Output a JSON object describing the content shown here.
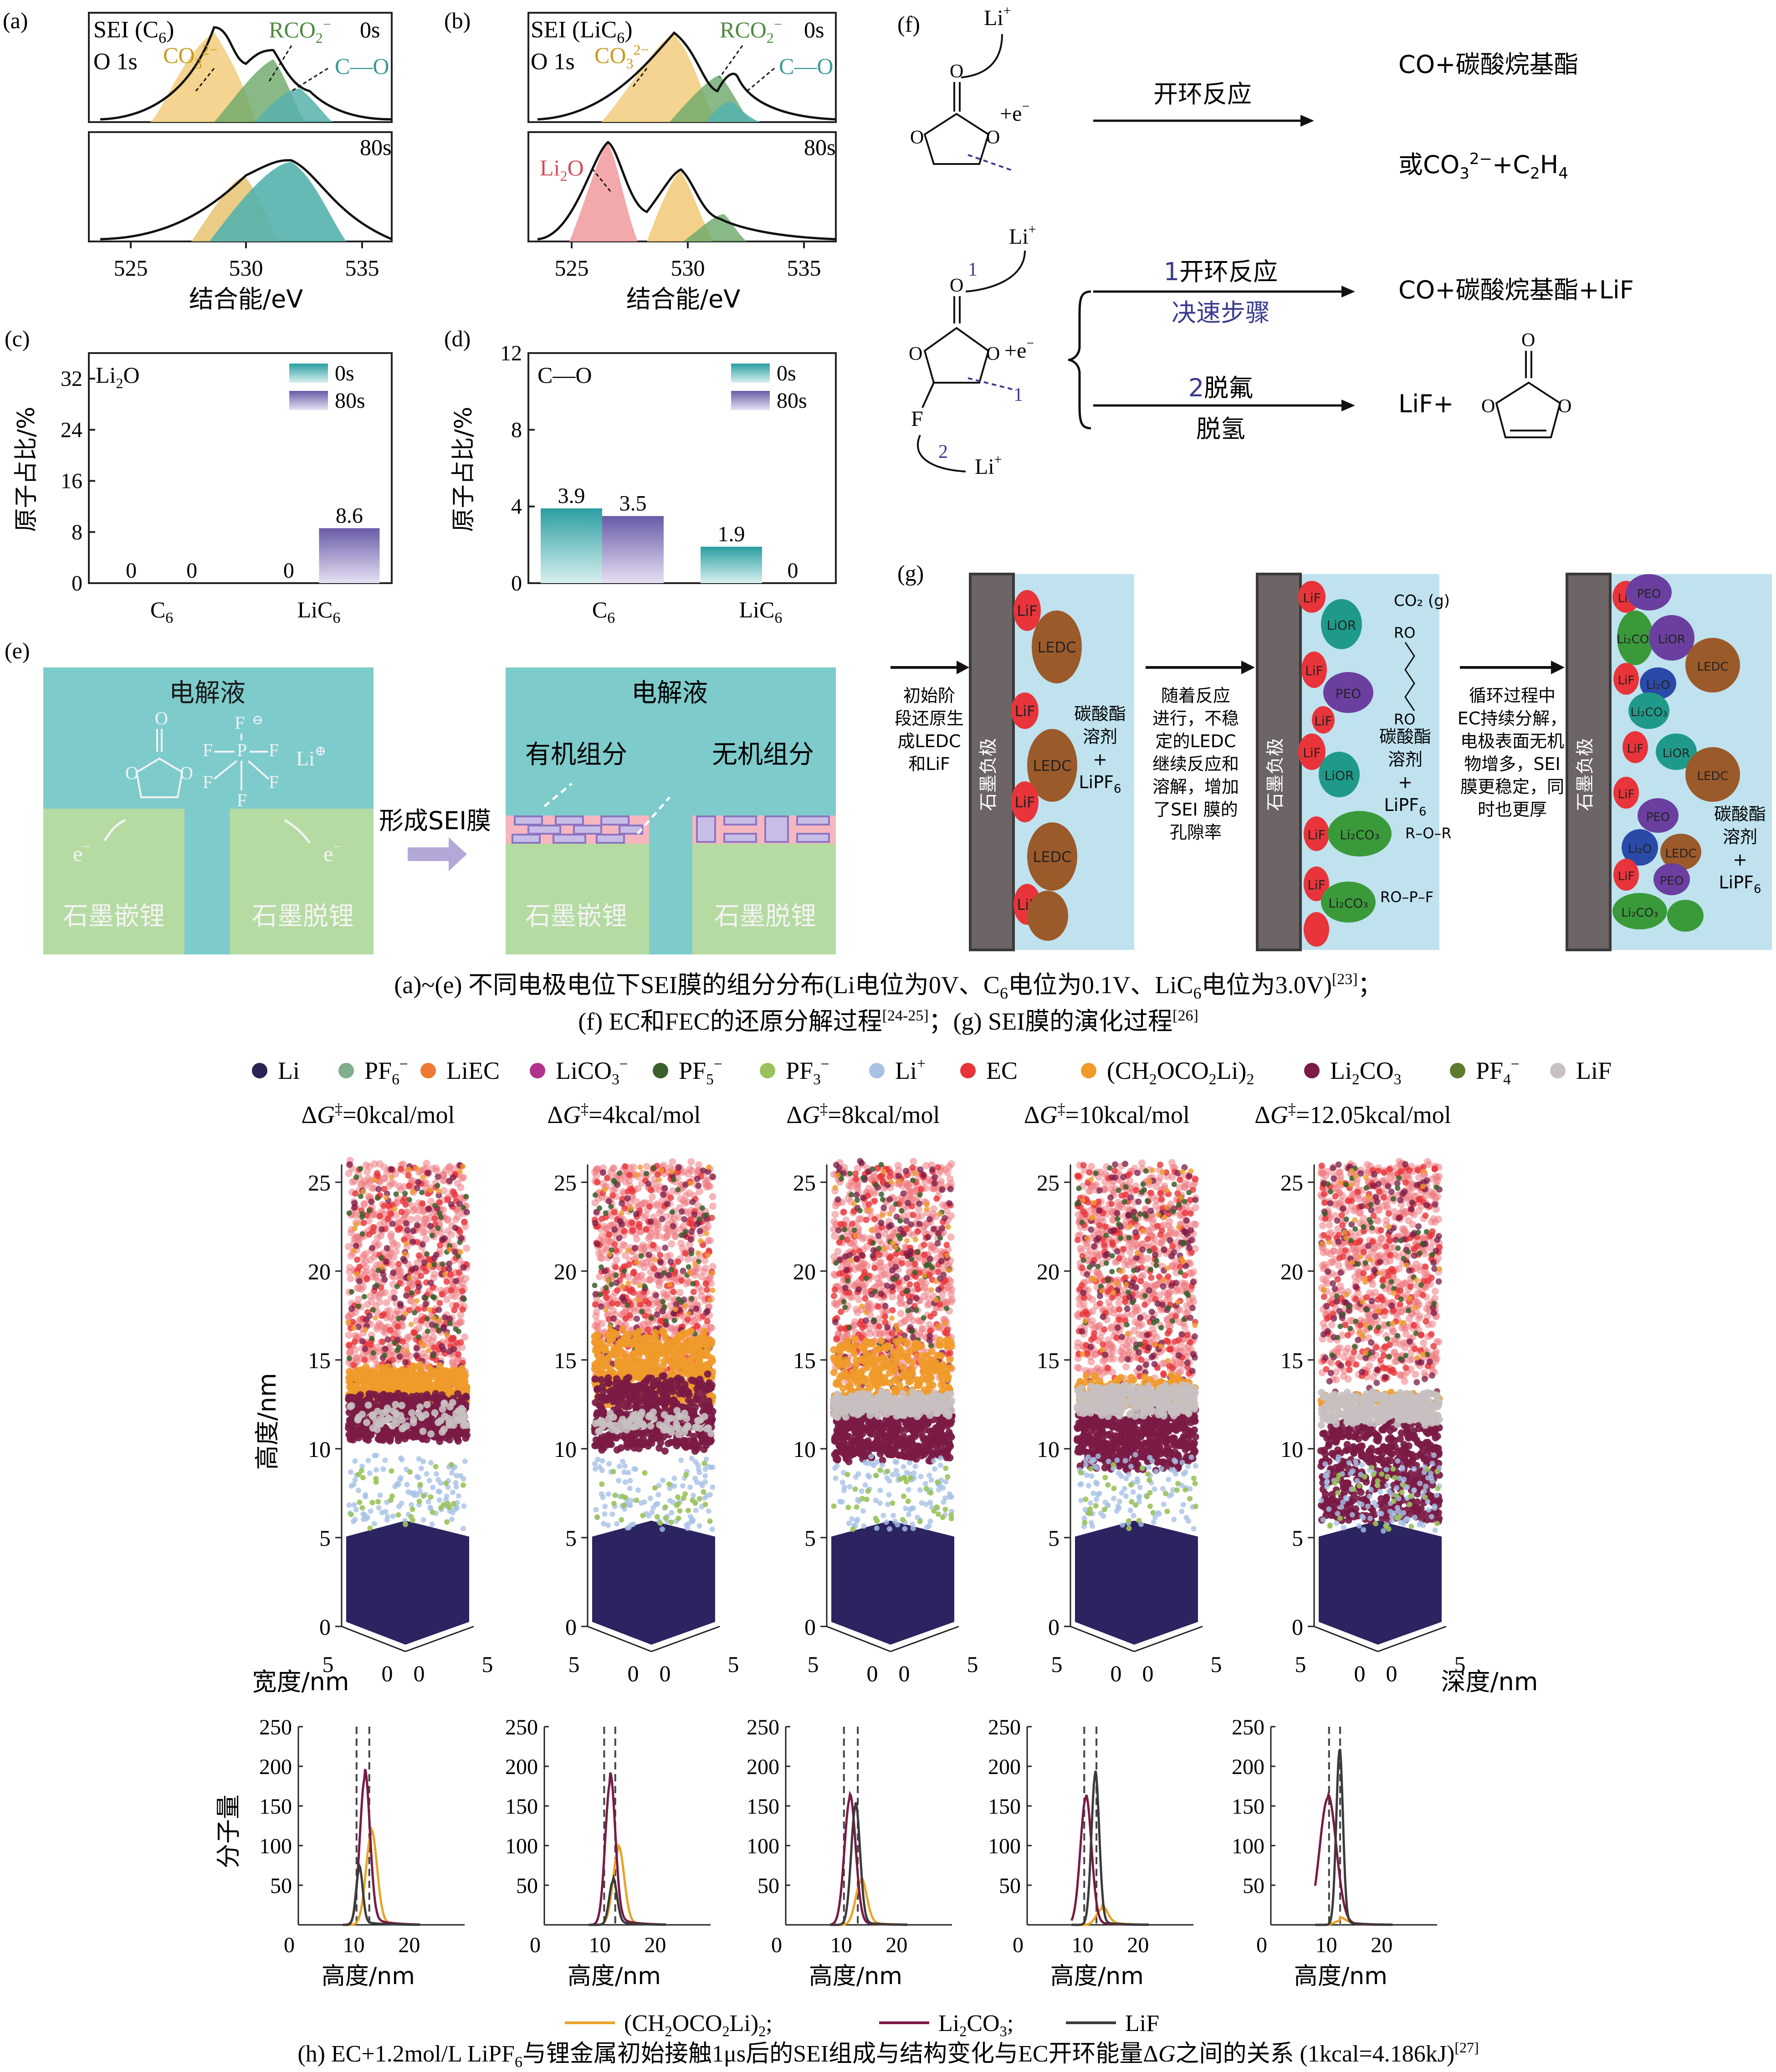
{
  "panels": {
    "a": {
      "tag": "(a)",
      "title_line1": "SEI (C",
      "title_sub": "6",
      "title_close": ")",
      "title_line2": "O 1s",
      "label_top": "0s",
      "label_bottom": "80s",
      "peaks": {
        "co3": "CO",
        "co3_sub": "3",
        "co3_sup": "2−",
        "rco2": "RCO",
        "rco2_sub": "2",
        "rco2_sup": "−",
        "co": "C—O"
      },
      "xticks": [
        "525",
        "530",
        "535"
      ],
      "xlabel": "结合能/eV"
    },
    "b": {
      "tag": "(b)",
      "title_line1": "SEI (LiC",
      "title_sub": "6",
      "title_close": ")",
      "title_line2": "O 1s",
      "label_top": "0s",
      "label_bottom": "80s",
      "peaks": {
        "co3": "CO",
        "co3_sub": "3",
        "co3_sup": "2−",
        "rco2": "RCO",
        "rco2_sub": "2",
        "rco2_sup": "−",
        "co": "C—O",
        "li2o": "Li",
        "li2o_sub": "2",
        "li2o_end": "O"
      },
      "xticks": [
        "525",
        "530",
        "535"
      ],
      "xlabel": "结合能/eV"
    },
    "c": {
      "tag": "(c)",
      "species": "Li",
      "species_sub": "2",
      "species_end": "O",
      "ylabel": "原子占比/%",
      "yticks": [
        "0",
        "8",
        "16",
        "24",
        "32"
      ],
      "legend": [
        "0s",
        "80s"
      ],
      "categories": [
        {
          "name": "C",
          "sub": "6"
        },
        {
          "name": "LiC",
          "sub": "6"
        }
      ]
    },
    "d": {
      "tag": "(d)",
      "species": "C—O",
      "ylabel": "原子占比/%",
      "yticks": [
        "0",
        "4",
        "8",
        "12"
      ],
      "legend": [
        "0s",
        "80s"
      ],
      "categories": [
        {
          "name": "C",
          "sub": "6"
        },
        {
          "name": "LiC",
          "sub": "6"
        }
      ]
    },
    "e": {
      "tag": "(e)",
      "electrolyte": "电解液",
      "electrolyte2": "电解液",
      "electron": "e",
      "electron_sup": "−",
      "graphite_in": "石墨嵌锂",
      "graphite_out": "石墨脱锂",
      "arrow_label": "形成SEI膜",
      "organic": "有机组分",
      "inorganic": "无机组分",
      "li_ion": "Li",
      "li_sup": "⊕",
      "f_label": "F",
      "p_label": "P",
      "minus": "⊖"
    },
    "f": {
      "tag": "(f)",
      "li1": "Li",
      "li_sup": "+",
      "e_minus": "+e",
      "e_sup": "−",
      "route1": "开环反应",
      "product1": "CO+碳酸烷基酯",
      "product2_a": "或CO",
      "product2_sub1": "3",
      "product2_sup1": "2−",
      "product2_b": "+C",
      "product2_sub2": "2",
      "product2_c": "H",
      "product2_sub3": "4",
      "fec_route1_num": "1",
      "fec_route1": "开环反应",
      "fec_route1_note": "决速步骤",
      "fec_product1": "CO+碳酸烷基酯+LiF",
      "fec_route2_num": "2",
      "fec_route2_a": "脱氟",
      "fec_route2_b": "脱氢",
      "fec_product2": "LiF+",
      "f_atom": "F",
      "o_atom": "O",
      "num1": "1",
      "num2": "2"
    },
    "g": {
      "tag": "(g)",
      "step1": [
        "初始阶",
        "段还原生",
        "成LEDC",
        "和LiF"
      ],
      "step2": [
        "随着反应",
        "进行，不稳",
        "定的LEDC",
        "继续反应和",
        "溶解，增加",
        "了SEI 膜的",
        "孔隙率"
      ],
      "step3": [
        "循环过程中",
        "EC持续分解，",
        "电极表面无机",
        "物增多，SEI",
        "膜更稳定，同",
        "时也更厚"
      ],
      "electrode": "石墨负极",
      "solvent": [
        "碳酸酯",
        "溶剂",
        "+",
        "LiPF"
      ],
      "solvent_sub": "6",
      "lif": "LiF",
      "ledc": "LEDC",
      "lior": "LiOR",
      "peo": "PEO",
      "li2co3": "Li₂CO₃",
      "li2o": "Li₂O",
      "co2": "CO₂ (g)",
      "ro": "RO",
      "r_o_r": "R–O–R",
      "ropf": "RO–P–F"
    }
  },
  "caption_main": {
    "line1": "(a)~(e) 不同电极电位下SEI膜的组分分布(Li电位为0V、C",
    "line1_sub": "6",
    "line1_b": "电位为0.1V、LiC",
    "line1_sub2": "6",
    "line1_c": "电位为3.0V)",
    "line1_ref": "[23]",
    "line1_end": "；",
    "line2": "(f) EC和FEC的还原分解过程",
    "line2_ref": "[24-25]",
    "line2_b": "；(g) SEI膜的演化过程",
    "line2_ref2": "[26]"
  },
  "legend_h": [
    {
      "label": "Li",
      "color": "#2a2356"
    },
    {
      "label": "PF",
      "sub": "6",
      "sup": "−",
      "color": "#7fae8a"
    },
    {
      "label": "LiEC",
      "color": "#ee7a34"
    },
    {
      "label": "LiCO",
      "sub": "3",
      "sup": "−",
      "color": "#b0328c"
    },
    {
      "label": "PF",
      "sub": "5",
      "sup": "−",
      "color": "#3a5f2a"
    },
    {
      "label": "PF",
      "sub": "3",
      "sup": "−",
      "color": "#9ac25a"
    },
    {
      "label": "Li",
      "sup": "+",
      "color": "#a8c2e6"
    },
    {
      "label": "EC",
      "color": "#e8343a"
    },
    {
      "label": "(CH",
      "sub": "2",
      "mid": "OCO",
      "sub2": "2",
      "end": "Li)",
      "sub3": "2",
      "color": "#f09a2a"
    },
    {
      "label": "Li",
      "sub": "2",
      "end": "CO",
      "sub3": "3",
      "color": "#7a1a45"
    },
    {
      "label": "PF",
      "sub": "4",
      "sup": "−",
      "color": "#5d7a2d"
    },
    {
      "label": "LiF",
      "color": "#c8c0c0"
    }
  ],
  "dg_titles": [
    {
      "prefix": "Δ",
      "italic": "G",
      "sup": "‡",
      "value": "=0kcal/mol"
    },
    {
      "prefix": "Δ",
      "italic": "G",
      "sup": "‡",
      "value": "=4kcal/mol"
    },
    {
      "prefix": "Δ",
      "italic": "G",
      "sup": "‡",
      "value": "=8kcal/mol"
    },
    {
      "prefix": "Δ",
      "italic": "G",
      "sup": "‡",
      "value": "=10kcal/mol"
    },
    {
      "prefix": "Δ",
      "italic": "G",
      "sup": "‡",
      "value": "=12.05kcal/mol"
    }
  ],
  "sim3d": {
    "yticks": [
      "0",
      "5",
      "10",
      "15",
      "20",
      "25"
    ],
    "ylabel": "高度/nm",
    "width_label": "宽度/nm",
    "depth_label": "深度/nm",
    "base_ticks_left": [
      "5",
      "0"
    ],
    "base_ticks_right": [
      "0",
      "5"
    ]
  },
  "dist_plots": {
    "ylabel": "分子量",
    "xlabel": "高度/nm",
    "yticks": [
      "0",
      "50",
      "100",
      "150",
      "200",
      "250"
    ],
    "xticks": [
      "0",
      "10",
      "20"
    ],
    "legend": [
      {
        "label": "(CH",
        "sub": "2",
        "mid": "OCO",
        "sub2": "2",
        "end": "Li)",
        "sub3": "2",
        "suffix": ";",
        "color": "#e8a42a"
      },
      {
        "label": "Li",
        "sub": "2",
        "end": "CO",
        "sub3": "3",
        "suffix": ";",
        "color": "#7a1a45"
      },
      {
        "label": "LiF",
        "color": "#3b3b3b"
      }
    ]
  },
  "chart_data": [
    {
      "type": "bar",
      "panel": "c",
      "categories": [
        "C6",
        "LiC6"
      ],
      "series": [
        {
          "name": "0s",
          "values": [
            0,
            0
          ]
        },
        {
          "name": "80s",
          "values": [
            0,
            8.6
          ]
        }
      ],
      "ylabel": "原子占比/%",
      "ylim": [
        0,
        36
      ],
      "data_labels": [
        "0",
        "0",
        "0",
        "8.6"
      ]
    },
    {
      "type": "bar",
      "panel": "d",
      "categories": [
        "C6",
        "LiC6"
      ],
      "series": [
        {
          "name": "0s",
          "values": [
            3.9,
            1.9
          ]
        },
        {
          "name": "80s",
          "values": [
            3.5,
            0
          ]
        }
      ],
      "ylabel": "原子占比/%",
      "ylim": [
        0,
        12
      ],
      "data_labels": [
        "3.9",
        "3.5",
        "1.9",
        "0"
      ]
    },
    {
      "type": "line",
      "panel": "h-distribution",
      "xlabel": "高度/nm",
      "ylabel": "分子量",
      "xlim": [
        0,
        30
      ],
      "ylim": [
        0,
        250
      ],
      "plots": [
        {
          "title": "ΔG‡=0kcal/mol",
          "dashed_x": [
            10.5,
            12.8
          ],
          "series": [
            {
              "name": "(CH2OCO2Li)2",
              "peak_x": 13.2,
              "peak_y": 115,
              "width": 1.0
            },
            {
              "name": "Li2CO3",
              "peak_x": 12,
              "peak_y": 185,
              "width": 0.9
            },
            {
              "name": "LiF",
              "peak_x": 11.0,
              "peak_y": 70,
              "width": 0.6
            }
          ]
        },
        {
          "title": "ΔG‡=4kcal/mol",
          "dashed_x": [
            10.8,
            12.8
          ],
          "series": [
            {
              "name": "(CH2OCO2Li)2",
              "peak_x": 13.4,
              "peak_y": 95,
              "width": 1.0
            },
            {
              "name": "Li2CO3",
              "peak_x": 11.9,
              "peak_y": 180,
              "width": 0.9
            },
            {
              "name": "LiF",
              "peak_x": 12.4,
              "peak_y": 55,
              "width": 0.7
            }
          ]
        },
        {
          "title": "ΔG‡=8kcal/mol",
          "dashed_x": [
            10.5,
            13.0
          ],
          "series": [
            {
              "name": "(CH2OCO2Li)2",
              "peak_x": 13.6,
              "peak_y": 55,
              "width": 1.0
            },
            {
              "name": "Li2CO3",
              "peak_x": 11.6,
              "peak_y": 160,
              "width": 1.0
            },
            {
              "name": "LiF",
              "peak_x": 12.6,
              "peak_y": 150,
              "width": 0.8
            }
          ]
        },
        {
          "title": "ΔG‡=10kcal/mol",
          "dashed_x": [
            10.3,
            12.5
          ],
          "series": [
            {
              "name": "(CH2OCO2Li)2",
              "peak_x": 13.5,
              "peak_y": 20,
              "width": 1.0
            },
            {
              "name": "Li2CO3",
              "peak_x": 10.6,
              "peak_y": 160,
              "width": 1.0
            },
            {
              "name": "LiF",
              "peak_x": 12.3,
              "peak_y": 190,
              "width": 0.7
            }
          ]
        },
        {
          "title": "ΔG‡=12.05kcal/mol",
          "dashed_x": [
            10.5,
            12.5
          ],
          "series": [
            {
              "name": "(CH2OCO2Li)2",
              "peak_x": 12.5,
              "peak_y": 5,
              "width": 1.0
            },
            {
              "name": "Li2CO3",
              "peak_x": 10.3,
              "peak_y": 160,
              "width": 1.5
            },
            {
              "name": "LiF",
              "peak_x": 12.4,
              "peak_y": 220,
              "width": 0.6
            }
          ]
        }
      ]
    }
  ],
  "caption_h": {
    "text_a": "(h) EC+1.2mol/L LiPF",
    "sub1": "6",
    "text_b": "与锂金属初始接触1μs后的SEI组成与结构变化与EC开环能量Δ",
    "italic": "G",
    "text_c": "之间的关系 (1kcal=4.186kJ)",
    "ref": "[27]"
  }
}
